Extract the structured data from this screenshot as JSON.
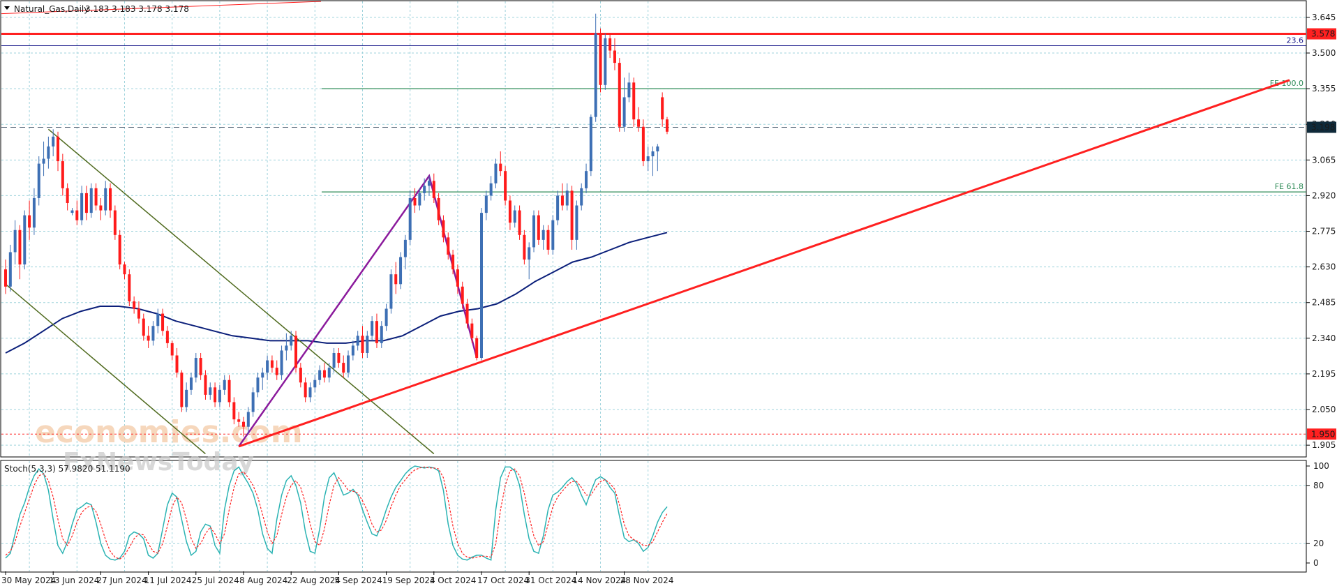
{
  "header": {
    "symbol_label": "Natural_Gas,Daily",
    "ohlc": "3.183 3.183 3.178 3.178"
  },
  "stoch_label": "Stoch(5,3,3) 57.9820 51.1190",
  "watermark": {
    "line1": "economies.com",
    "line2": "FxNewsToday"
  },
  "colors": {
    "bull": "#3d6fb4",
    "bear": "#ff1a1a",
    "ma": "#0b1f7a",
    "trend": "#ff2020",
    "channel": "#4f6a1e",
    "wave": "#8b1a9c",
    "fib": "#2e8b57",
    "grid": "#9fd3dc",
    "price_tag": "#0f2a3a",
    "stoch_main": "#2bb3b3",
    "stoch_signal": "#ff2020"
  },
  "chart_data": {
    "type": "candlestick",
    "instrument": "Natural_Gas",
    "timeframe": "Daily",
    "y_ticks": [
      "1.905",
      "2.050",
      "2.195",
      "2.340",
      "2.485",
      "2.630",
      "2.775",
      "2.920",
      "3.065",
      "3.210",
      "3.355",
      "3.500",
      "3.645"
    ],
    "ylim": [
      1.86,
      3.71
    ],
    "x_ticks": [
      "30 May 2024",
      "13 Jun 2024",
      "27 Jun 2024",
      "11 Jul 2024",
      "25 Jul 2024",
      "8 Aug 2024",
      "22 Aug 2024",
      "5 Sep 2024",
      "19 Sep 2024",
      "3 Oct 2024",
      "17 Oct 2024",
      "31 Oct 2024",
      "14 Nov 2024",
      "28 Nov 2024"
    ],
    "candles": [
      [
        "2024-05-30",
        2.62,
        2.66,
        2.52,
        2.55
      ],
      [
        "2024-05-31",
        2.55,
        2.72,
        2.53,
        2.69
      ],
      [
        "2024-06-03",
        2.69,
        2.82,
        2.64,
        2.78
      ],
      [
        "2024-06-04",
        2.78,
        2.8,
        2.58,
        2.64
      ],
      [
        "2024-06-05",
        2.64,
        2.86,
        2.62,
        2.84
      ],
      [
        "2024-06-06",
        2.84,
        2.9,
        2.74,
        2.79
      ],
      [
        "2024-06-07",
        2.79,
        2.95,
        2.76,
        2.91
      ],
      [
        "2024-06-10",
        2.91,
        3.08,
        2.88,
        3.05
      ],
      [
        "2024-06-11",
        3.05,
        3.14,
        3.0,
        3.07
      ],
      [
        "2024-06-12",
        3.07,
        3.16,
        3.03,
        3.12
      ],
      [
        "2024-06-13",
        3.12,
        3.19,
        3.08,
        3.16
      ],
      [
        "2024-06-14",
        3.16,
        3.18,
        3.02,
        3.06
      ],
      [
        "2024-06-17",
        3.06,
        3.09,
        2.92,
        2.95
      ],
      [
        "2024-06-18",
        2.95,
        2.97,
        2.86,
        2.89
      ],
      [
        "2024-06-19",
        2.85,
        2.87,
        2.84,
        2.86
      ],
      [
        "2024-06-20",
        2.86,
        2.9,
        2.8,
        2.82
      ],
      [
        "2024-06-21",
        2.82,
        2.96,
        2.8,
        2.93
      ],
      [
        "2024-06-24",
        2.93,
        2.96,
        2.82,
        2.85
      ],
      [
        "2024-06-25",
        2.85,
        2.97,
        2.83,
        2.95
      ],
      [
        "2024-06-26",
        2.95,
        2.97,
        2.86,
        2.88
      ],
      [
        "2024-06-27",
        2.88,
        2.91,
        2.82,
        2.86
      ],
      [
        "2024-06-28",
        2.86,
        2.98,
        2.84,
        2.95
      ],
      [
        "2024-07-01",
        2.95,
        2.97,
        2.83,
        2.86
      ],
      [
        "2024-07-02",
        2.86,
        2.88,
        2.74,
        2.76
      ],
      [
        "2024-07-03",
        2.76,
        2.78,
        2.62,
        2.64
      ],
      [
        "2024-07-05",
        2.64,
        2.65,
        2.58,
        2.6
      ],
      [
        "2024-07-08",
        2.6,
        2.62,
        2.47,
        2.49
      ],
      [
        "2024-07-09",
        2.49,
        2.51,
        2.44,
        2.46
      ],
      [
        "2024-07-10",
        2.46,
        2.49,
        2.4,
        2.42
      ],
      [
        "2024-07-11",
        2.42,
        2.44,
        2.33,
        2.35
      ],
      [
        "2024-07-12",
        2.35,
        2.39,
        2.3,
        2.33
      ],
      [
        "2024-07-15",
        2.33,
        2.41,
        2.31,
        2.39
      ],
      [
        "2024-07-16",
        2.39,
        2.46,
        2.36,
        2.44
      ],
      [
        "2024-07-17",
        2.44,
        2.46,
        2.35,
        2.37
      ],
      [
        "2024-07-18",
        2.37,
        2.39,
        2.3,
        2.32
      ],
      [
        "2024-07-19",
        2.32,
        2.33,
        2.25,
        2.27
      ],
      [
        "2024-07-22",
        2.27,
        2.3,
        2.18,
        2.2
      ],
      [
        "2024-07-23",
        2.2,
        2.21,
        2.04,
        2.06
      ],
      [
        "2024-07-24",
        2.06,
        2.16,
        2.04,
        2.13
      ],
      [
        "2024-07-25",
        2.13,
        2.2,
        2.11,
        2.18
      ],
      [
        "2024-07-26",
        2.18,
        2.28,
        2.16,
        2.26
      ],
      [
        "2024-07-29",
        2.26,
        2.28,
        2.17,
        2.19
      ],
      [
        "2024-07-30",
        2.19,
        2.21,
        2.09,
        2.11
      ],
      [
        "2024-07-31",
        2.11,
        2.16,
        2.09,
        2.14
      ],
      [
        "2024-08-01",
        2.14,
        2.16,
        2.06,
        2.08
      ],
      [
        "2024-08-02",
        2.08,
        2.15,
        2.06,
        2.13
      ],
      [
        "2024-08-05",
        2.13,
        2.19,
        2.11,
        2.17
      ],
      [
        "2024-08-06",
        2.17,
        2.19,
        2.06,
        2.08
      ],
      [
        "2024-08-07",
        2.08,
        2.1,
        1.99,
        2.01
      ],
      [
        "2024-08-08",
        2.01,
        2.04,
        1.98,
        2.0
      ],
      [
        "2024-08-09",
        2.0,
        2.02,
        1.94,
        1.98
      ],
      [
        "2024-08-12",
        1.98,
        2.06,
        1.95,
        2.04
      ],
      [
        "2024-08-13",
        2.04,
        2.14,
        2.02,
        2.12
      ],
      [
        "2024-08-14",
        2.12,
        2.2,
        2.1,
        2.18
      ],
      [
        "2024-08-15",
        2.18,
        2.22,
        2.13,
        2.2
      ],
      [
        "2024-08-16",
        2.2,
        2.27,
        2.17,
        2.25
      ],
      [
        "2024-08-19",
        2.25,
        2.27,
        2.2,
        2.22
      ],
      [
        "2024-08-20",
        2.22,
        2.25,
        2.17,
        2.19
      ],
      [
        "2024-08-21",
        2.19,
        2.31,
        2.17,
        2.29
      ],
      [
        "2024-08-22",
        2.29,
        2.36,
        2.25,
        2.31
      ],
      [
        "2024-08-23",
        2.31,
        2.37,
        2.29,
        2.35
      ],
      [
        "2024-08-26",
        2.35,
        2.37,
        2.2,
        2.22
      ],
      [
        "2024-08-27",
        2.22,
        2.24,
        2.14,
        2.16
      ],
      [
        "2024-08-28",
        2.16,
        2.18,
        2.08,
        2.1
      ],
      [
        "2024-08-29",
        2.1,
        2.16,
        2.08,
        2.14
      ],
      [
        "2024-08-30",
        2.14,
        2.19,
        2.12,
        2.17
      ],
      [
        "2024-09-02",
        2.17,
        2.23,
        2.15,
        2.21
      ],
      [
        "2024-09-03",
        2.21,
        2.24,
        2.16,
        2.18
      ],
      [
        "2024-09-04",
        2.18,
        2.24,
        2.16,
        2.22
      ],
      [
        "2024-09-05",
        2.22,
        2.3,
        2.2,
        2.28
      ],
      [
        "2024-09-06",
        2.28,
        2.3,
        2.22,
        2.24
      ],
      [
        "2024-09-09",
        2.24,
        2.27,
        2.18,
        2.2
      ],
      [
        "2024-09-10",
        2.2,
        2.29,
        2.18,
        2.27
      ],
      [
        "2024-09-11",
        2.27,
        2.33,
        2.25,
        2.31
      ],
      [
        "2024-09-12",
        2.31,
        2.37,
        2.29,
        2.35
      ],
      [
        "2024-09-13",
        2.35,
        2.39,
        2.26,
        2.28
      ],
      [
        "2024-09-16",
        2.28,
        2.37,
        2.26,
        2.35
      ],
      [
        "2024-09-17",
        2.35,
        2.43,
        2.33,
        2.41
      ],
      [
        "2024-09-18",
        2.41,
        2.44,
        2.3,
        2.32
      ],
      [
        "2024-09-19",
        2.32,
        2.41,
        2.3,
        2.39
      ],
      [
        "2024-09-20",
        2.39,
        2.48,
        2.37,
        2.46
      ],
      [
        "2024-09-23",
        2.46,
        2.62,
        2.44,
        2.6
      ],
      [
        "2024-09-24",
        2.6,
        2.65,
        2.52,
        2.56
      ],
      [
        "2024-09-25",
        2.56,
        2.69,
        2.54,
        2.67
      ],
      [
        "2024-09-26",
        2.67,
        2.76,
        2.62,
        2.74
      ],
      [
        "2024-09-27",
        2.74,
        2.94,
        2.72,
        2.91
      ],
      [
        "2024-09-30",
        2.91,
        2.95,
        2.85,
        2.88
      ],
      [
        "2024-10-01",
        2.88,
        2.95,
        2.86,
        2.93
      ],
      [
        "2024-10-02",
        2.93,
        2.99,
        2.9,
        2.96
      ],
      [
        "2024-10-03",
        2.96,
        3.0,
        2.92,
        2.98
      ],
      [
        "2024-10-04",
        2.98,
        3.01,
        2.89,
        2.91
      ],
      [
        "2024-10-07",
        2.91,
        2.93,
        2.8,
        2.82
      ],
      [
        "2024-10-08",
        2.82,
        2.84,
        2.73,
        2.75
      ],
      [
        "2024-10-09",
        2.75,
        2.77,
        2.66,
        2.68
      ],
      [
        "2024-10-10",
        2.68,
        2.7,
        2.6,
        2.62
      ],
      [
        "2024-10-11",
        2.62,
        2.64,
        2.52,
        2.55
      ],
      [
        "2024-10-14",
        2.55,
        2.57,
        2.46,
        2.48
      ],
      [
        "2024-10-15",
        2.48,
        2.5,
        2.38,
        2.4
      ],
      [
        "2024-10-16",
        2.4,
        2.42,
        2.32,
        2.34
      ],
      [
        "2024-10-17",
        2.34,
        2.35,
        2.25,
        2.26
      ],
      [
        "2024-10-18",
        2.26,
        2.87,
        2.25,
        2.85
      ],
      [
        "2024-10-21",
        2.85,
        2.94,
        2.82,
        2.92
      ],
      [
        "2024-10-22",
        2.92,
        3.0,
        2.9,
        2.97
      ],
      [
        "2024-10-23",
        2.97,
        3.07,
        2.95,
        3.05
      ],
      [
        "2024-10-24",
        3.05,
        3.1,
        3.0,
        3.02
      ],
      [
        "2024-10-25",
        3.02,
        3.04,
        2.88,
        2.9
      ],
      [
        "2024-10-28",
        2.9,
        2.92,
        2.78,
        2.81
      ],
      [
        "2024-10-29",
        2.81,
        2.88,
        2.79,
        2.86
      ],
      [
        "2024-10-30",
        2.86,
        2.88,
        2.74,
        2.76
      ],
      [
        "2024-10-31",
        2.76,
        2.78,
        2.64,
        2.66
      ],
      [
        "2024-11-01",
        2.66,
        2.73,
        2.58,
        2.71
      ],
      [
        "2024-11-04",
        2.71,
        2.86,
        2.69,
        2.84
      ],
      [
        "2024-11-05",
        2.84,
        2.86,
        2.72,
        2.74
      ],
      [
        "2024-11-06",
        2.74,
        2.8,
        2.7,
        2.78
      ],
      [
        "2024-11-07",
        2.78,
        2.8,
        2.68,
        2.7
      ],
      [
        "2024-11-08",
        2.7,
        2.84,
        2.68,
        2.82
      ],
      [
        "2024-11-11",
        2.82,
        2.94,
        2.8,
        2.92
      ],
      [
        "2024-11-12",
        2.92,
        2.97,
        2.86,
        2.88
      ],
      [
        "2024-11-13",
        2.88,
        2.97,
        2.86,
        2.94
      ],
      [
        "2024-11-14",
        2.94,
        2.96,
        2.7,
        2.74
      ],
      [
        "2024-11-15",
        2.74,
        2.9,
        2.7,
        2.88
      ],
      [
        "2024-11-18",
        2.88,
        2.97,
        2.86,
        2.95
      ],
      [
        "2024-11-19",
        2.95,
        3.05,
        2.93,
        3.02
      ],
      [
        "2024-11-20",
        3.02,
        3.25,
        3.0,
        3.24
      ],
      [
        "2024-11-21",
        3.24,
        3.66,
        3.22,
        3.58
      ],
      [
        "2024-11-22",
        3.58,
        3.6,
        3.34,
        3.37
      ],
      [
        "2024-11-25",
        3.37,
        3.58,
        3.35,
        3.56
      ],
      [
        "2024-11-26",
        3.56,
        3.58,
        3.48,
        3.51
      ],
      [
        "2024-11-27",
        3.51,
        3.56,
        3.43,
        3.46
      ],
      [
        "2024-11-28",
        3.46,
        3.48,
        3.18,
        3.2
      ],
      [
        "2024-11-29",
        3.2,
        3.4,
        3.18,
        3.32
      ],
      [
        "2024-12-02",
        3.32,
        3.42,
        3.3,
        3.38
      ],
      [
        "2024-12-03",
        3.38,
        3.4,
        3.2,
        3.23
      ],
      [
        "2024-12-04",
        3.23,
        3.28,
        3.18,
        3.2
      ],
      [
        "2024-12-05",
        3.2,
        3.23,
        3.04,
        3.06
      ],
      [
        "2024-12-06",
        3.06,
        3.12,
        3.02,
        3.08
      ],
      [
        "2024-12-09",
        3.08,
        3.12,
        3.0,
        3.1
      ],
      [
        "2024-12-10",
        3.1,
        3.13,
        3.02,
        3.12
      ],
      [
        "2024-12-11",
        3.32,
        3.34,
        3.2,
        3.23
      ],
      [
        "2024-12-12",
        3.23,
        3.24,
        3.17,
        3.18
      ]
    ],
    "ma_series": [
      2.28,
      2.32,
      2.37,
      2.42,
      2.45,
      2.47,
      2.47,
      2.46,
      2.44,
      2.41,
      2.39,
      2.37,
      2.35,
      2.34,
      2.33,
      2.33,
      2.33,
      2.32,
      2.32,
      2.33,
      2.33,
      2.35,
      2.39,
      2.43,
      2.45,
      2.46,
      2.48,
      2.52,
      2.57,
      2.61,
      2.65,
      2.67,
      2.7,
      2.73,
      2.75,
      2.77
    ],
    "horizontal_levels": [
      {
        "price": 3.578,
        "label": "3.578",
        "kind": "resistance"
      },
      {
        "price": 3.53,
        "label": "23.6",
        "kind": "fib"
      },
      {
        "price": 3.355,
        "label": "FE 100.0",
        "kind": "fib_ext"
      },
      {
        "price": 2.935,
        "label": "FE 61.8",
        "kind": "fib_ext"
      },
      {
        "price": 1.95,
        "label": "1.950",
        "kind": "support"
      }
    ],
    "price_tags": {
      "current": "3.198",
      "bid": "3.178"
    },
    "drawings": {
      "trendline": [
        [
          "2024-08-08",
          1.9
        ],
        [
          "future",
          3.39
        ]
      ],
      "wave": [
        [
          "2024-08-08",
          1.9
        ],
        [
          "2024-10-03",
          3.0
        ],
        [
          "2024-10-17",
          2.26
        ]
      ],
      "channel_upper": [
        [
          "2024-06-12",
          3.19
        ],
        [
          "2024-10-04",
          1.87
        ]
      ],
      "channel_lower": [
        [
          "2024-05-30",
          2.56
        ],
        [
          "2024-07-30",
          1.87
        ]
      ]
    },
    "stochastic": {
      "name": "Stoch(5,3,3)",
      "main_value": 57.982,
      "signal_value": 51.119,
      "levels": [
        "100",
        "80",
        "20",
        "0"
      ],
      "main": [
        5,
        10,
        30,
        50,
        62,
        78,
        90,
        97,
        92,
        75,
        45,
        18,
        10,
        22,
        40,
        55,
        58,
        62,
        60,
        42,
        20,
        8,
        4,
        3,
        5,
        12,
        28,
        32,
        30,
        25,
        8,
        5,
        10,
        35,
        60,
        72,
        68,
        45,
        22,
        8,
        12,
        32,
        40,
        38,
        18,
        10,
        55,
        80,
        95,
        99,
        90,
        82,
        72,
        55,
        30,
        15,
        10,
        45,
        70,
        85,
        90,
        80,
        62,
        32,
        12,
        10,
        35,
        68,
        88,
        93,
        82,
        70,
        72,
        76,
        70,
        55,
        42,
        30,
        28,
        40,
        55,
        68,
        78,
        85,
        92,
        97,
        100,
        99,
        98,
        99,
        98,
        95,
        75,
        40,
        18,
        8,
        4,
        3,
        6,
        8,
        8,
        5,
        3,
        55,
        88,
        99,
        99,
        95,
        80,
        50,
        25,
        12,
        10,
        28,
        55,
        70,
        73,
        78,
        84,
        88,
        82,
        70,
        60,
        74,
        86,
        89,
        86,
        78,
        72,
        48,
        26,
        22,
        24,
        20,
        12,
        16,
        28,
        42,
        52,
        58
      ],
      "signal": [
        8,
        12,
        22,
        38,
        52,
        66,
        80,
        90,
        92,
        85,
        68,
        45,
        25,
        18,
        28,
        42,
        52,
        57,
        59,
        53,
        40,
        24,
        12,
        6,
        4,
        8,
        16,
        25,
        30,
        29,
        20,
        12,
        10,
        20,
        38,
        58,
        68,
        62,
        45,
        25,
        15,
        20,
        30,
        37,
        30,
        20,
        30,
        55,
        78,
        92,
        94,
        88,
        80,
        68,
        50,
        32,
        20,
        28,
        50,
        68,
        80,
        85,
        78,
        62,
        40,
        22,
        18,
        35,
        60,
        80,
        88,
        82,
        75,
        74,
        72,
        64,
        54,
        40,
        32,
        34,
        44,
        58,
        70,
        80,
        86,
        92,
        96,
        98,
        99,
        98,
        98,
        97,
        88,
        65,
        38,
        20,
        10,
        6,
        5,
        6,
        7,
        7,
        6,
        20,
        55,
        80,
        95,
        97,
        90,
        72,
        48,
        28,
        18,
        22,
        40,
        58,
        68,
        74,
        80,
        84,
        84,
        78,
        70,
        70,
        78,
        84,
        86,
        82,
        76,
        60,
        40,
        28,
        24,
        22,
        18,
        18,
        22,
        32,
        42,
        51
      ]
    }
  }
}
